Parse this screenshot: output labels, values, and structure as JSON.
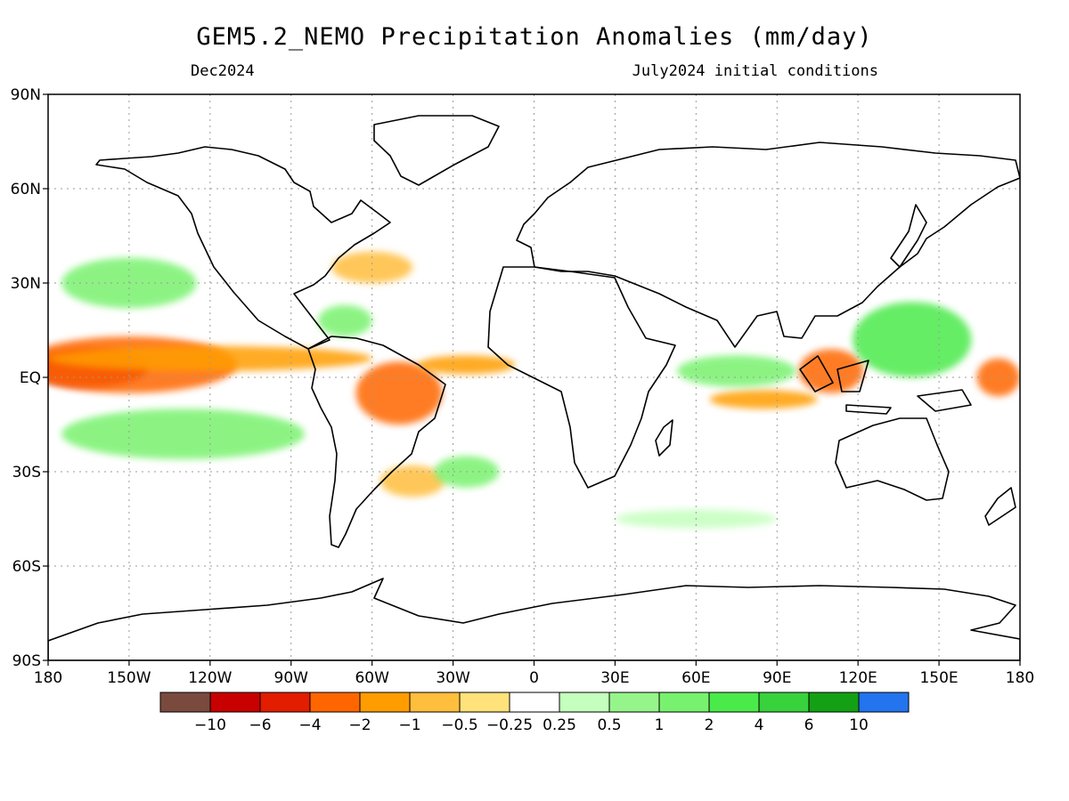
{
  "title": "GEM5.2_NEMO Precipitation Anomalies (mm/day)",
  "valid_month": "Dec2024",
  "init_text": "July2024 initial conditions",
  "lat_labels": [
    "90N",
    "60N",
    "30N",
    "EQ",
    "30S",
    "60S",
    "90S"
  ],
  "lon_labels": [
    "180",
    "150W",
    "120W",
    "90W",
    "60W",
    "30W",
    "0",
    "30E",
    "60E",
    "90E",
    "120E",
    "150E",
    "180"
  ],
  "colorbar": {
    "colors": [
      "#7a4a3e",
      "#c80000",
      "#e21d00",
      "#ff6600",
      "#ff9d00",
      "#ffbe3c",
      "#ffe27a",
      "#ffffff",
      "#c4ffbd",
      "#96f58a",
      "#78f26e",
      "#4bea4b",
      "#37d23c",
      "#14a014",
      "#2374ee"
    ],
    "labels": [
      "−10",
      "−6",
      "−4",
      "−2",
      "−1",
      "−0.5",
      "−0.25",
      "0.25",
      "0.5",
      "1",
      "2",
      "4",
      "6",
      "10"
    ]
  },
  "anomaly_regions": [
    {
      "label": "central-pacific-dry-core",
      "cx": -165,
      "cy": 3,
      "rx": 22,
      "ry": 6,
      "color": "#c80000"
    },
    {
      "label": "central-pacific-dry",
      "cx": -150,
      "cy": 4,
      "rx": 40,
      "ry": 9,
      "color": "#ff6600"
    },
    {
      "label": "equatorial-pacific-dry-band",
      "cx": -120,
      "cy": 6,
      "rx": 60,
      "ry": 4,
      "color": "#ff9d00"
    },
    {
      "label": "amazon-dry",
      "cx": -50,
      "cy": -5,
      "rx": 16,
      "ry": 10,
      "color": "#ff6600"
    },
    {
      "label": "atlantic-itcz-dry",
      "cx": -25,
      "cy": 4,
      "rx": 18,
      "ry": 3,
      "color": "#ff9d00"
    },
    {
      "label": "maritime-continent-dry",
      "cx": 110,
      "cy": 2,
      "rx": 12,
      "ry": 7,
      "color": "#ff6600"
    },
    {
      "label": "west-pacific-dry",
      "cx": 172,
      "cy": 0,
      "rx": 8,
      "ry": 6,
      "color": "#ff6600"
    },
    {
      "label": "indian-ocean-dry",
      "cx": 85,
      "cy": -7,
      "rx": 20,
      "ry": 3,
      "color": "#ff9d00"
    },
    {
      "label": "south-atlantic-dry",
      "cx": -45,
      "cy": -33,
      "rx": 12,
      "ry": 5,
      "color": "#ffbe3c"
    },
    {
      "label": "north-atlantic-dry",
      "cx": -60,
      "cy": 35,
      "rx": 15,
      "ry": 5,
      "color": "#ffbe3c"
    },
    {
      "label": "west-pacific-wet",
      "cx": 140,
      "cy": 12,
      "rx": 22,
      "ry": 12,
      "color": "#4bea4b"
    },
    {
      "label": "south-pacific-wet",
      "cx": -130,
      "cy": -18,
      "rx": 45,
      "ry": 8,
      "color": "#78f26e"
    },
    {
      "label": "north-pacific-wet",
      "cx": -150,
      "cy": 30,
      "rx": 25,
      "ry": 8,
      "color": "#78f26e"
    },
    {
      "label": "indian-ocean-wet",
      "cx": 75,
      "cy": 2,
      "rx": 22,
      "ry": 5,
      "color": "#78f26e"
    },
    {
      "label": "south-atlantic-wet",
      "cx": -25,
      "cy": -30,
      "rx": 12,
      "ry": 5,
      "color": "#78f26e"
    },
    {
      "label": "caribbean-wet",
      "cx": -70,
      "cy": 18,
      "rx": 10,
      "ry": 5,
      "color": "#78f26e"
    },
    {
      "label": "southern-ocean-wet",
      "cx": 60,
      "cy": -45,
      "rx": 30,
      "ry": 3,
      "color": "#c4ffbd"
    }
  ]
}
